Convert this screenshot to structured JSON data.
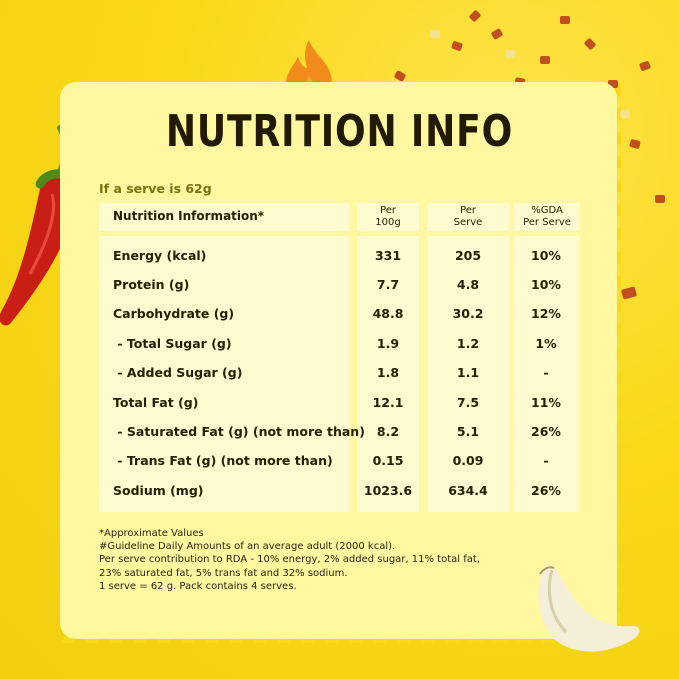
{
  "title": "NUTRITION INFO",
  "serve_note": "If a serve is 62g",
  "table": {
    "headers": {
      "label": "Nutrition Information*",
      "per100_line1": "Per",
      "per100_line2": "100g",
      "perserve_line1": "Per",
      "perserve_line2": "Serve",
      "gda_line1": "%GDA",
      "gda_line2": "Per Serve"
    },
    "rows": [
      {
        "label": "Energy (kcal)",
        "per100": "331",
        "perserve": "205",
        "gda": "10%"
      },
      {
        "label": "Protein (g)",
        "per100": "7.7",
        "perserve": "4.8",
        "gda": "10%"
      },
      {
        "label": "Carbohydrate (g)",
        "per100": "48.8",
        "perserve": "30.2",
        "gda": "12%"
      },
      {
        "label": " - Total Sugar (g)",
        "per100": "1.9",
        "perserve": "1.2",
        "gda": "1%"
      },
      {
        "label": " - Added Sugar (g)",
        "per100": "1.8",
        "perserve": "1.1",
        "gda": "-"
      },
      {
        "label": "Total Fat (g)",
        "per100": "12.1",
        "perserve": "7.5",
        "gda": "11%"
      },
      {
        "label": " - Saturated Fat (g) (not more than)",
        "per100": "8.2",
        "perserve": "5.1",
        "gda": "26%"
      },
      {
        "label": " - Trans Fat (g) (not more than)",
        "per100": "0.15",
        "perserve": "0.09",
        "gda": "-"
      },
      {
        "label": "Sodium (mg)",
        "per100": "1023.6",
        "perserve": "634.4",
        "gda": "26%"
      }
    ]
  },
  "footnotes": [
    "*Approximate Values",
    "#Guideline Daily Amounts of an average adult (2000 kcal).",
    "Per serve contribution to RDA - 10% energy, 2% added sugar, 11% total fat,",
    "23% saturated fat, 5% trans fat and 32% sodium.",
    "1 serve = 62 g. Pack contains 4 serves."
  ],
  "colors": {
    "background": "#f8d91a",
    "card": "#fff8a0",
    "cell": "#fffbd0",
    "flame": "#f28a1c",
    "chili": "#c81e16"
  }
}
